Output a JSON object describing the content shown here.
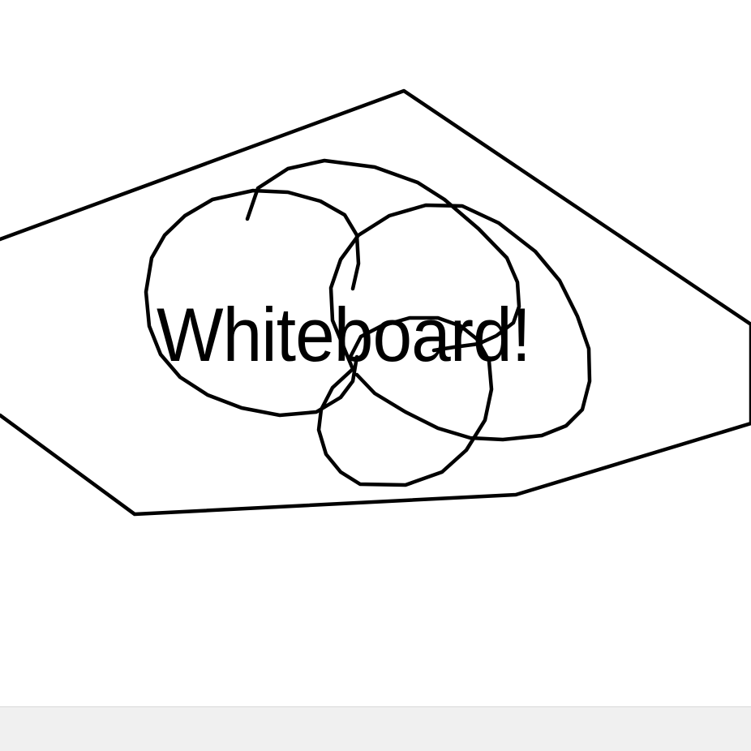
{
  "whiteboard": {
    "text_label": "Whiteboard!",
    "ink_color": "#000000",
    "canvas_color": "#ffffff"
  },
  "bottom_bar": {
    "background_color": "#f0f0f0"
  }
}
